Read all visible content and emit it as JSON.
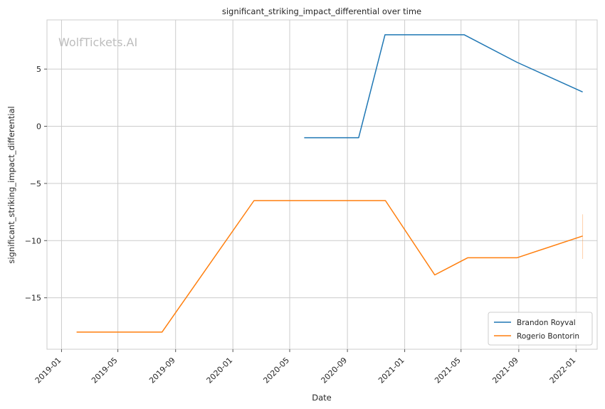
{
  "chart_data": {
    "type": "line",
    "title": "significant_striking_impact_differential over time",
    "xlabel": "Date",
    "ylabel": "significant_striking_impact_differential",
    "watermark": "WolfTickets.AI",
    "x_ticks": [
      "2019-01",
      "2019-05",
      "2019-09",
      "2020-01",
      "2020-05",
      "2020-09",
      "2021-01",
      "2021-05",
      "2021-09",
      "2022-01"
    ],
    "y_ticks": [
      5,
      0,
      -5,
      -10,
      -15
    ],
    "y_tick_labels": [
      "5",
      "0",
      "−5",
      "−10",
      "−15"
    ],
    "xlim": [
      "2018-12-01",
      "2022-02-15"
    ],
    "ylim": [
      -19.5,
      9.3
    ],
    "grid": true,
    "legend_position": "lower-right",
    "series": [
      {
        "name": "Brandon Royval",
        "color": "#1f77b4",
        "x": [
          "2020-06-01",
          "2020-09-25",
          "2020-11-20",
          "2021-05-08",
          "2021-08-28",
          "2022-01-15"
        ],
        "y": [
          -1.0,
          -1.0,
          8.0,
          8.0,
          5.6,
          3.0
        ]
      },
      {
        "name": "Rogerio Bontorin",
        "color": "#ff7f0e",
        "x": [
          "2019-02-02",
          "2019-08-03",
          "2020-02-15",
          "2020-11-21",
          "2021-03-06",
          "2021-05-15",
          "2021-08-28",
          "2022-01-15"
        ],
        "y": [
          -18.0,
          -18.0,
          -6.5,
          -6.5,
          -13.0,
          -11.5,
          -11.5,
          -9.6
        ],
        "error_bar": {
          "x": "2022-01-15",
          "low": -11.6,
          "high": -7.7
        }
      }
    ]
  }
}
